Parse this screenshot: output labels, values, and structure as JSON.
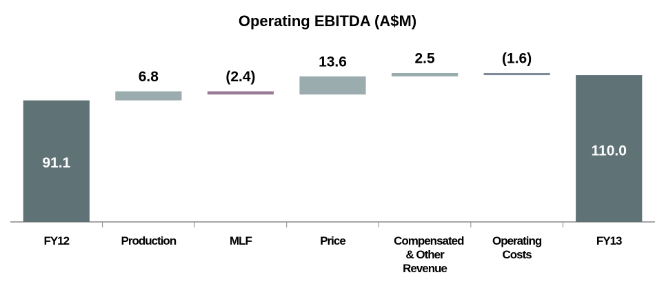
{
  "chart_data": {
    "type": "waterfall",
    "title": "Operating EBITDA (A$M)",
    "categories": [
      "FY12",
      "Production",
      "MLF",
      "Price",
      "Compensated & Other Revenue",
      "Operating Costs",
      "FY13"
    ],
    "values": [
      91.1,
      6.8,
      -2.4,
      13.6,
      2.5,
      -1.6,
      110.0
    ],
    "value_labels": [
      "91.1",
      "6.8",
      "(2.4)",
      "13.6",
      "2.5",
      "(1.6)",
      "110.0"
    ],
    "colors": [
      "#5f7275",
      "#9aacad",
      "#9a7a95",
      "#9aacad",
      "#9aacad",
      "#7f8a99",
      "#5f7275"
    ],
    "ylim": [
      0,
      140
    ]
  }
}
